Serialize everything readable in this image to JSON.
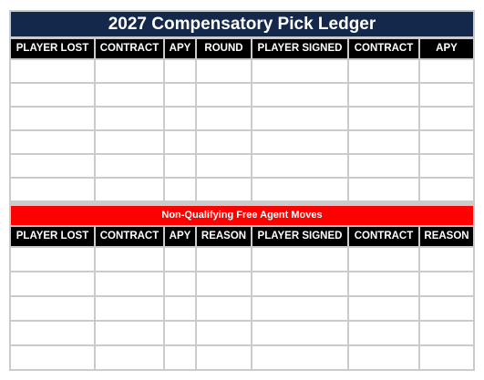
{
  "ledger": {
    "title": "2027 Compensatory Pick Ledger",
    "qualifying_headers": [
      "PLAYER LOST",
      "CONTRACT",
      "APY",
      "ROUND",
      "PLAYER SIGNED",
      "CONTRACT",
      "APY"
    ],
    "non_qualifying_banner": "Non-Qualifying Free Agent Moves",
    "non_qualifying_headers": [
      "PLAYER LOST",
      "CONTRACT",
      "APY",
      "REASON",
      "PLAYER SIGNED",
      "CONTRACT",
      "REASON"
    ]
  },
  "colors": {
    "title_bar": "#14284b",
    "header_row": "#000000",
    "banner": "#ff0000",
    "grid_lines": "#c9cbcd"
  }
}
